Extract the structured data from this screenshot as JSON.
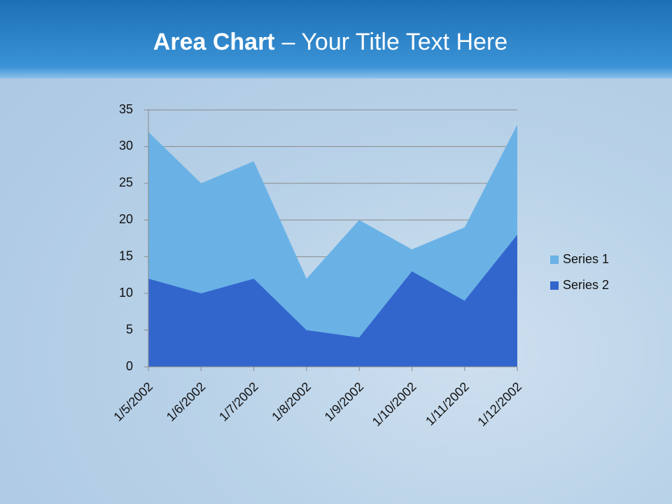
{
  "chart_data": {
    "type": "area",
    "title": {
      "bold": "Area Chart",
      "rest": "– Your Title Text Here"
    },
    "categories": [
      "1/5/2002",
      "1/6/2002",
      "1/7/2002",
      "1/8/2002",
      "1/9/2002",
      "1/10/2002",
      "1/11/2002",
      "1/12/2002"
    ],
    "series": [
      {
        "name": "Series 1",
        "color": "#6ab2e6",
        "values": [
          32,
          25,
          28,
          12,
          20,
          16,
          19,
          33
        ]
      },
      {
        "name": "Series 2",
        "color": "#3366cc",
        "values": [
          12,
          10,
          12,
          5,
          4,
          13,
          9,
          18
        ]
      }
    ],
    "ylim": [
      0,
      35
    ],
    "yticks": [
      0,
      5,
      10,
      15,
      20,
      25,
      30,
      35
    ],
    "grid": true,
    "legend": "right"
  }
}
